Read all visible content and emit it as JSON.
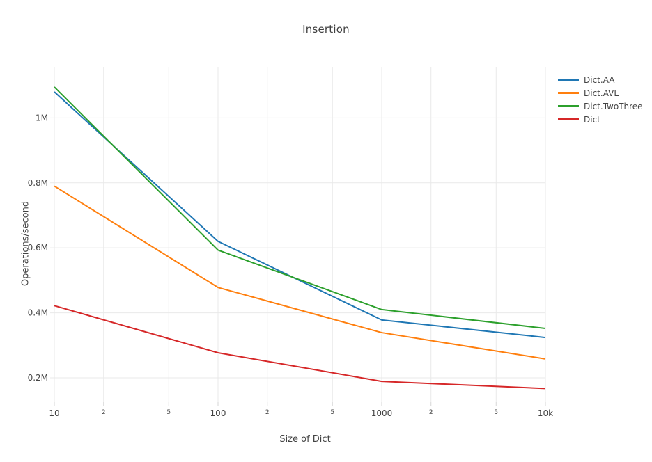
{
  "figure": {
    "background": "#ffffff"
  },
  "chart_data": {
    "type": "line",
    "title": "Insertion",
    "xlabel": "Size of Dict",
    "ylabel": "Operations/second",
    "x_scale": "log",
    "grid": true,
    "legend_position": "right-top",
    "x": [
      10,
      100,
      1000,
      10000
    ],
    "xlim": [
      10,
      10000
    ],
    "ylim": [
      125000,
      1155000
    ],
    "series": [
      {
        "name": "Dict.AA",
        "color": "#1f77b4",
        "values": [
          1080000,
          620000,
          378000,
          324000
        ]
      },
      {
        "name": "Dict.AVL",
        "color": "#ff7f0e",
        "values": [
          790000,
          478000,
          339000,
          258000
        ]
      },
      {
        "name": "Dict.TwoThree",
        "color": "#2ca02c",
        "values": [
          1095000,
          593000,
          410000,
          352000
        ]
      },
      {
        "name": "Dict",
        "color": "#d62728",
        "values": [
          422000,
          277000,
          189000,
          167000
        ]
      }
    ],
    "yticks": [
      {
        "value": 200000,
        "label": "0.2M"
      },
      {
        "value": 400000,
        "label": "0.4M"
      },
      {
        "value": 600000,
        "label": "0.6M"
      },
      {
        "value": 800000,
        "label": "0.8M"
      },
      {
        "value": 1000000,
        "label": "1M"
      }
    ],
    "xticks_major": [
      {
        "value": 10,
        "label": "10"
      },
      {
        "value": 100,
        "label": "100"
      },
      {
        "value": 1000,
        "label": "1000"
      },
      {
        "value": 10000,
        "label": "10k"
      }
    ],
    "xticks_minor": [
      {
        "value": 20,
        "label": "2"
      },
      {
        "value": 50,
        "label": "5"
      },
      {
        "value": 200,
        "label": "2"
      },
      {
        "value": 500,
        "label": "5"
      },
      {
        "value": 2000,
        "label": "2"
      },
      {
        "value": 5000,
        "label": "5"
      }
    ],
    "colors": {
      "grid": "#e9e9e9",
      "tick": "#d6d6d6",
      "tick_text": "#444444",
      "title_text": "#404040"
    }
  }
}
